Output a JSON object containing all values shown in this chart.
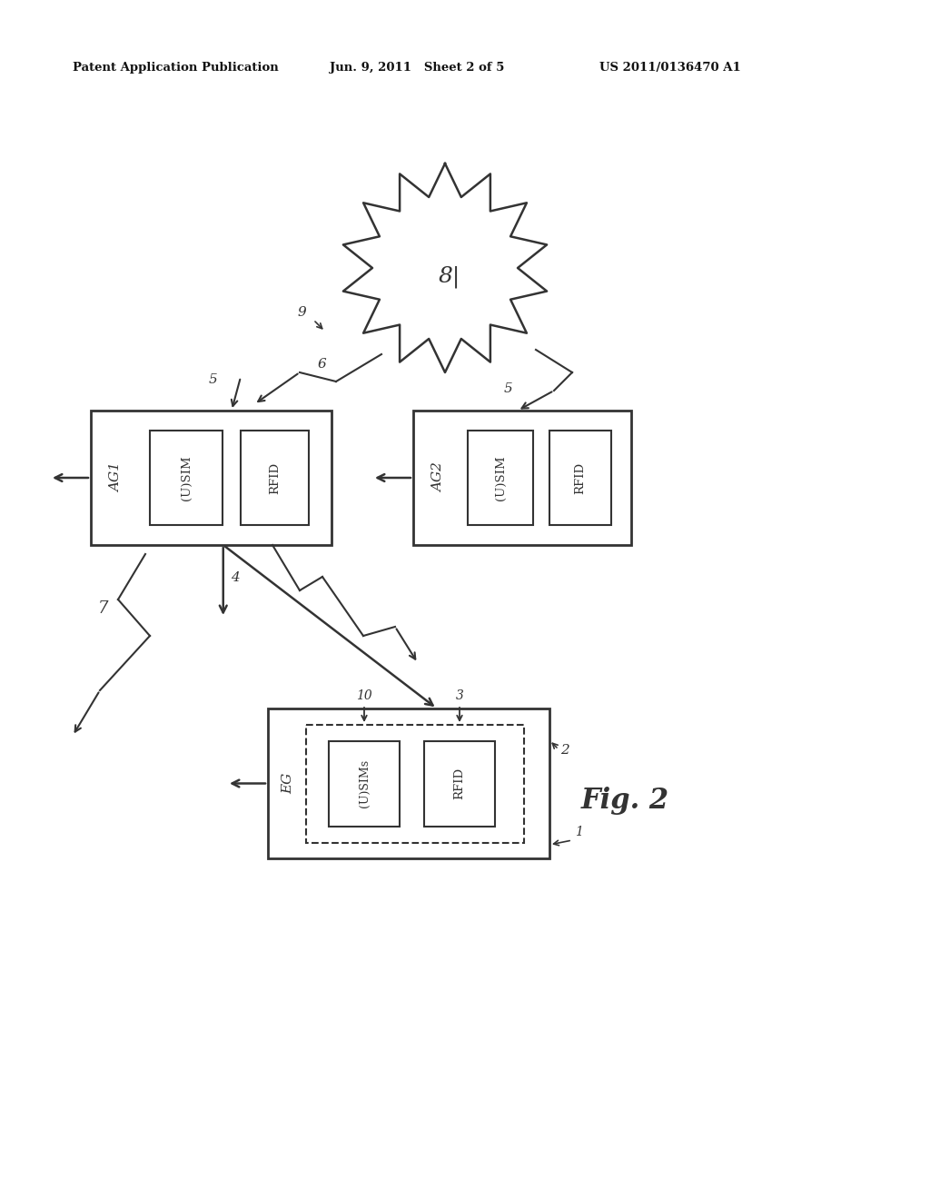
{
  "bg_color": "#ffffff",
  "header_left": "Patent Application Publication",
  "header_mid": "Jun. 9, 2011   Sheet 2 of 5",
  "header_right": "US 2011/0136470 A1",
  "fig_label": "Fig. 2",
  "network_label": "8|",
  "color": "#333333"
}
